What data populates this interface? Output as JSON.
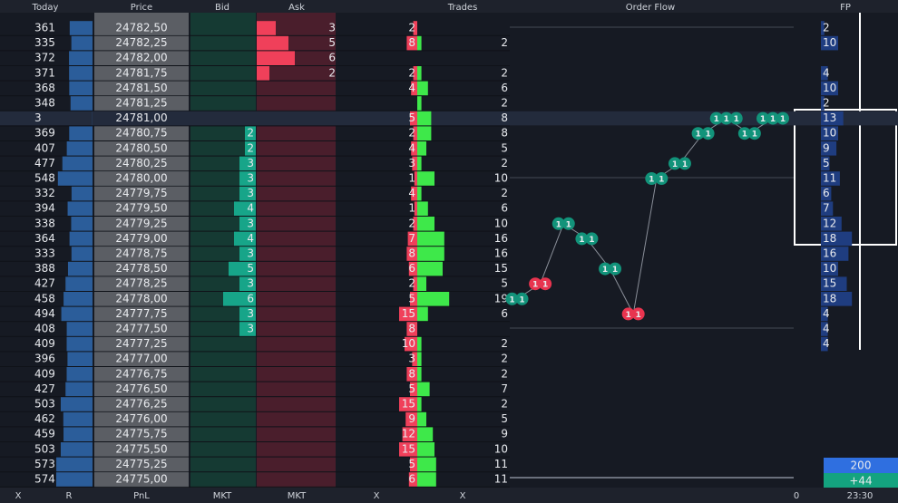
{
  "header": {
    "columns": [
      "Today",
      "Price",
      "Bid",
      "Ask",
      "Trades",
      "Order Flow",
      "FP"
    ]
  },
  "rows": [
    {
      "price": {
        "value": 24782.5,
        "label": "24782,50"
      },
      "today": 361,
      "bid": null,
      "ask": 3,
      "sell": 2,
      "buy": null,
      "fp": 2
    },
    {
      "price": {
        "value": 24782.25,
        "label": "24782,25"
      },
      "today": 335,
      "bid": null,
      "ask": 5,
      "sell": 8,
      "buy": 2,
      "fp": 10
    },
    {
      "price": {
        "value": 24782.0,
        "label": "24782,00"
      },
      "today": 372,
      "bid": null,
      "ask": 6,
      "sell": null,
      "buy": null,
      "fp": null
    },
    {
      "price": {
        "value": 24781.75,
        "label": "24781,75"
      },
      "today": 371,
      "bid": null,
      "ask": 2,
      "sell": 2,
      "buy": 2,
      "fp": 4
    },
    {
      "price": {
        "value": 24781.5,
        "label": "24781,50"
      },
      "today": 368,
      "bid": null,
      "ask": null,
      "sell": 4,
      "buy": 6,
      "fp": 10
    },
    {
      "price": {
        "value": 24781.25,
        "label": "24781,25"
      },
      "today": 348,
      "bid": null,
      "ask": null,
      "sell": null,
      "buy": 2,
      "fp": 2
    },
    {
      "price": {
        "value": 24781.0,
        "label": "24781,00"
      },
      "today": 3,
      "bid": null,
      "ask": null,
      "sell": 5,
      "buy": 8,
      "fp": 13
    },
    {
      "price": {
        "value": 24780.75,
        "label": "24780,75"
      },
      "today": 369,
      "bid": 2,
      "ask": null,
      "sell": 2,
      "buy": 8,
      "fp": 10
    },
    {
      "price": {
        "value": 24780.5,
        "label": "24780,50"
      },
      "today": 407,
      "bid": 2,
      "ask": null,
      "sell": 4,
      "buy": 5,
      "fp": 9
    },
    {
      "price": {
        "value": 24780.25,
        "label": "24780,25"
      },
      "today": 477,
      "bid": 3,
      "ask": null,
      "sell": 3,
      "buy": 2,
      "fp": 5
    },
    {
      "price": {
        "value": 24780.0,
        "label": "24780,00"
      },
      "today": 548,
      "bid": 3,
      "ask": null,
      "sell": 1,
      "buy": 10,
      "fp": 11
    },
    {
      "price": {
        "value": 24779.75,
        "label": "24779,75"
      },
      "today": 332,
      "bid": 3,
      "ask": null,
      "sell": 4,
      "buy": 2,
      "fp": 6
    },
    {
      "price": {
        "value": 24779.5,
        "label": "24779,50"
      },
      "today": 394,
      "bid": 4,
      "ask": null,
      "sell": 1,
      "buy": 6,
      "fp": 7
    },
    {
      "price": {
        "value": 24779.25,
        "label": "24779,25"
      },
      "today": 338,
      "bid": 3,
      "ask": null,
      "sell": 2,
      "buy": 10,
      "fp": 12
    },
    {
      "price": {
        "value": 24779.0,
        "label": "24779,00"
      },
      "today": 364,
      "bid": 4,
      "ask": null,
      "sell": 7,
      "buy": 16,
      "fp": 18
    },
    {
      "price": {
        "value": 24778.75,
        "label": "24778,75"
      },
      "today": 333,
      "bid": 3,
      "ask": null,
      "sell": 8,
      "buy": 16,
      "fp": 16
    },
    {
      "price": {
        "value": 24778.5,
        "label": "24778,50"
      },
      "today": 388,
      "bid": 5,
      "ask": null,
      "sell": 6,
      "buy": 15,
      "fp": 10
    },
    {
      "price": {
        "value": 24778.25,
        "label": "24778,25"
      },
      "today": 427,
      "bid": 3,
      "ask": null,
      "sell": 2,
      "buy": 5,
      "fp": 15
    },
    {
      "price": {
        "value": 24778.0,
        "label": "24778,00"
      },
      "today": 458,
      "bid": 6,
      "ask": null,
      "sell": 5,
      "buy": 19,
      "fp": 18
    },
    {
      "price": {
        "value": 24777.75,
        "label": "24777,75"
      },
      "today": 494,
      "bid": 3,
      "ask": null,
      "sell": 15,
      "buy": 6,
      "fp": 4
    },
    {
      "price": {
        "value": 24777.5,
        "label": "24777,50"
      },
      "today": 408,
      "bid": 3,
      "ask": null,
      "sell": 8,
      "buy": null,
      "fp": 4
    },
    {
      "price": {
        "value": 24777.25,
        "label": "24777,25"
      },
      "today": 409,
      "bid": null,
      "ask": null,
      "sell": 10,
      "buy": 2,
      "fp": 4
    },
    {
      "price": {
        "value": 24777.0,
        "label": "24777,00"
      },
      "today": 396,
      "bid": null,
      "ask": null,
      "sell": 3,
      "buy": 2,
      "fp": null
    },
    {
      "price": {
        "value": 24776.75,
        "label": "24776,75"
      },
      "today": 409,
      "bid": null,
      "ask": null,
      "sell": 8,
      "buy": 2,
      "fp": null
    },
    {
      "price": {
        "value": 24776.5,
        "label": "24776,50"
      },
      "today": 427,
      "bid": null,
      "ask": null,
      "sell": 5,
      "buy": 7,
      "fp": null
    },
    {
      "price": {
        "value": 24776.25,
        "label": "24776,25"
      },
      "today": 503,
      "bid": null,
      "ask": null,
      "sell": 15,
      "buy": 2,
      "fp": null
    },
    {
      "price": {
        "value": 24776.0,
        "label": "24776,00"
      },
      "today": 462,
      "bid": null,
      "ask": null,
      "sell": 9,
      "buy": 5,
      "fp": null
    },
    {
      "price": {
        "value": 24775.75,
        "label": "24775,75"
      },
      "today": 459,
      "bid": null,
      "ask": null,
      "sell": 12,
      "buy": 9,
      "fp": null
    },
    {
      "price": {
        "value": 24775.5,
        "label": "24775,50"
      },
      "today": 503,
      "bid": null,
      "ask": null,
      "sell": 15,
      "buy": 10,
      "fp": null
    },
    {
      "price": {
        "value": 24775.25,
        "label": "24775,25"
      },
      "today": 573,
      "bid": null,
      "ask": null,
      "sell": 5,
      "buy": 11,
      "fp": null
    },
    {
      "price": {
        "value": 24775.0,
        "label": "24775,00"
      },
      "today": 574,
      "bid": null,
      "ask": null,
      "sell": 6,
      "buy": 11,
      "fp": null
    }
  ],
  "order_flow": {
    "points": [
      {
        "price": 24778.0,
        "side": "buy",
        "labels": [
          "1",
          "1"
        ]
      },
      {
        "price": 24778.25,
        "side": "sell",
        "labels": [
          "1",
          "1"
        ]
      },
      {
        "price": 24779.25,
        "side": "buy",
        "labels": [
          "1",
          "1"
        ]
      },
      {
        "price": 24779.0,
        "side": "buy",
        "labels": [
          "1",
          "1"
        ]
      },
      {
        "price": 24778.5,
        "side": "buy",
        "labels": [
          "1",
          "1"
        ]
      },
      {
        "price": 24777.75,
        "side": "sell",
        "labels": [
          "1",
          "1"
        ]
      },
      {
        "price": 24780.0,
        "side": "buy",
        "labels": [
          "1",
          "1"
        ]
      },
      {
        "price": 24780.25,
        "side": "buy",
        "labels": [
          "1",
          "1"
        ]
      },
      {
        "price": 24780.75,
        "side": "buy",
        "labels": [
          "1",
          "1"
        ]
      },
      {
        "price": 24781.0,
        "side": "buy",
        "labels": [
          "1",
          "1",
          "1"
        ]
      },
      {
        "price": 24780.75,
        "side": "buy",
        "labels": [
          "1",
          "1"
        ]
      },
      {
        "price": 24781.0,
        "side": "buy",
        "labels": [
          "1",
          "1",
          "1"
        ]
      }
    ]
  },
  "summary": {
    "total": "200",
    "delta": "+44"
  },
  "footer": [
    "X",
    "R",
    "PnL",
    "MKT",
    "MKT",
    "X",
    "X",
    "0",
    "23:30"
  ]
}
